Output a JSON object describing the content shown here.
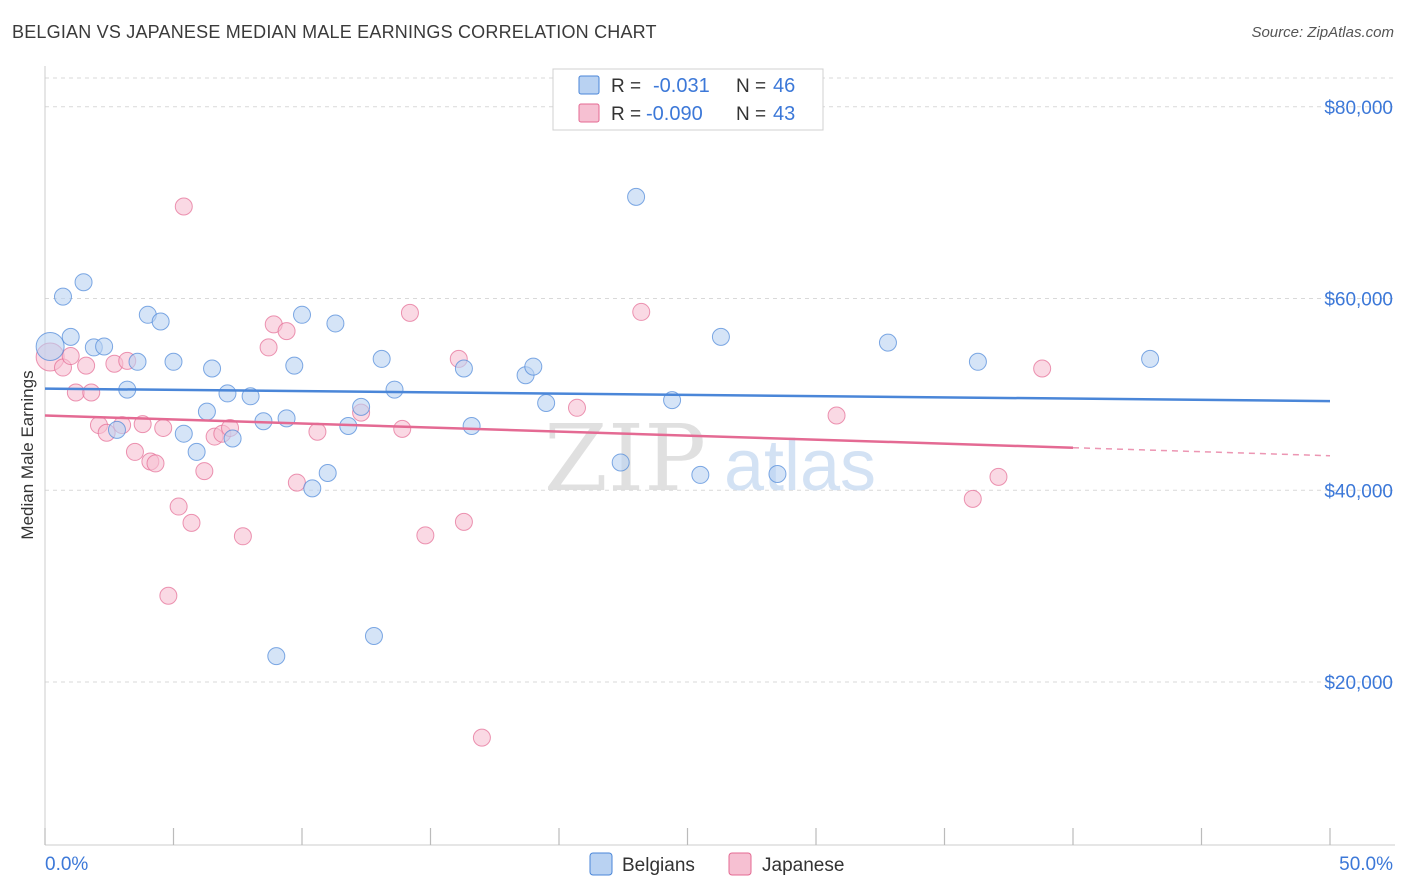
{
  "header": {
    "title": "BELGIAN VS JAPANESE MEDIAN MALE EARNINGS CORRELATION CHART",
    "source": "Source: ZipAtlas.com"
  },
  "watermark": {
    "zip": "ZIP",
    "atlas": "atlas"
  },
  "colors": {
    "belgians": "#4a86d8",
    "belgians_fill": "#b9d2f2",
    "japanese": "#e46a93",
    "japanese_fill": "#f6c0d2",
    "axis_label": "#3c78d8",
    "grid": "#d9d9d9"
  },
  "chart_data": {
    "type": "scatter",
    "title": "BELGIAN VS JAPANESE MEDIAN MALE EARNINGS CORRELATION CHART",
    "ylabel": "Median Male Earnings",
    "xlabel": "",
    "xlim": [
      0,
      50
    ],
    "ylim": [
      3000,
      83000
    ],
    "x_tick_labels": {
      "min": "0.0%",
      "max": "50.0%"
    },
    "y_ticks": [
      {
        "value": 20000,
        "label": "$20,000"
      },
      {
        "value": 40000,
        "label": "$40,000"
      },
      {
        "value": 60000,
        "label": "$60,000"
      },
      {
        "value": 80000,
        "label": "$80,000"
      }
    ],
    "grid": true,
    "legend_placement": "bottom-center",
    "stats": [
      {
        "series": "Belgians",
        "r_label": "R =",
        "r_value": "-0.031",
        "n_label": "N =",
        "n_value": "46"
      },
      {
        "series": "Japanese",
        "r_label": "R =",
        "r_value": "-0.090",
        "n_label": "N =",
        "n_value": "43"
      }
    ],
    "series": [
      {
        "name": "Belgians",
        "trend": {
          "x": [
            0,
            50
          ],
          "y": [
            50600,
            49300
          ],
          "dashed_from": null
        },
        "points": [
          [
            0.2,
            55000
          ],
          [
            0.7,
            60200
          ],
          [
            1.0,
            56000
          ],
          [
            1.5,
            61700
          ],
          [
            1.9,
            54900
          ],
          [
            2.3,
            55000
          ],
          [
            2.8,
            46300
          ],
          [
            3.2,
            50500
          ],
          [
            3.6,
            53400
          ],
          [
            4.0,
            58300
          ],
          [
            4.5,
            57600
          ],
          [
            5.0,
            53400
          ],
          [
            5.4,
            45900
          ],
          [
            5.9,
            44000
          ],
          [
            6.3,
            48200
          ],
          [
            6.5,
            52700
          ],
          [
            7.1,
            50100
          ],
          [
            7.3,
            45400
          ],
          [
            8.0,
            49800
          ],
          [
            8.5,
            47200
          ],
          [
            9.0,
            22700
          ],
          [
            9.4,
            47500
          ],
          [
            9.7,
            53000
          ],
          [
            10.0,
            58300
          ],
          [
            10.4,
            40200
          ],
          [
            11.0,
            41800
          ],
          [
            11.3,
            57400
          ],
          [
            11.8,
            46700
          ],
          [
            12.3,
            48700
          ],
          [
            12.8,
            24800
          ],
          [
            13.1,
            53700
          ],
          [
            13.6,
            50500
          ],
          [
            16.3,
            52700
          ],
          [
            16.6,
            46700
          ],
          [
            18.7,
            52000
          ],
          [
            19.0,
            52900
          ],
          [
            19.5,
            49100
          ],
          [
            22.4,
            42900
          ],
          [
            23.0,
            70600
          ],
          [
            24.4,
            49400
          ],
          [
            25.5,
            41600
          ],
          [
            26.3,
            56000
          ],
          [
            28.5,
            41700
          ],
          [
            32.8,
            55400
          ],
          [
            36.3,
            53400
          ],
          [
            43.0,
            53700
          ]
        ]
      },
      {
        "name": "Japanese",
        "trend": {
          "x": [
            0,
            50
          ],
          "y": [
            47800,
            43600
          ],
          "dashed_from": 40
        },
        "points": [
          [
            0.2,
            53900
          ],
          [
            0.7,
            52800
          ],
          [
            1.0,
            54000
          ],
          [
            1.2,
            50200
          ],
          [
            1.6,
            53000
          ],
          [
            1.8,
            50200
          ],
          [
            2.1,
            46800
          ],
          [
            2.4,
            46000
          ],
          [
            2.7,
            53200
          ],
          [
            3.0,
            46800
          ],
          [
            3.2,
            53500
          ],
          [
            3.5,
            44000
          ],
          [
            3.8,
            46900
          ],
          [
            4.1,
            43000
          ],
          [
            4.3,
            42800
          ],
          [
            4.6,
            46500
          ],
          [
            4.8,
            29000
          ],
          [
            5.2,
            38300
          ],
          [
            5.4,
            69600
          ],
          [
            5.7,
            36600
          ],
          [
            6.2,
            42000
          ],
          [
            6.6,
            45600
          ],
          [
            6.9,
            45900
          ],
          [
            7.2,
            46500
          ],
          [
            7.7,
            35200
          ],
          [
            8.7,
            54900
          ],
          [
            8.9,
            57300
          ],
          [
            9.4,
            56600
          ],
          [
            9.8,
            40800
          ],
          [
            10.6,
            46100
          ],
          [
            12.3,
            48100
          ],
          [
            13.9,
            46400
          ],
          [
            14.2,
            58500
          ],
          [
            14.8,
            35300
          ],
          [
            16.1,
            53700
          ],
          [
            16.3,
            36700
          ],
          [
            17.0,
            14200
          ],
          [
            20.7,
            48600
          ],
          [
            23.2,
            58600
          ],
          [
            30.8,
            47800
          ],
          [
            36.1,
            39100
          ],
          [
            37.1,
            41400
          ],
          [
            38.8,
            52700
          ]
        ]
      }
    ]
  }
}
